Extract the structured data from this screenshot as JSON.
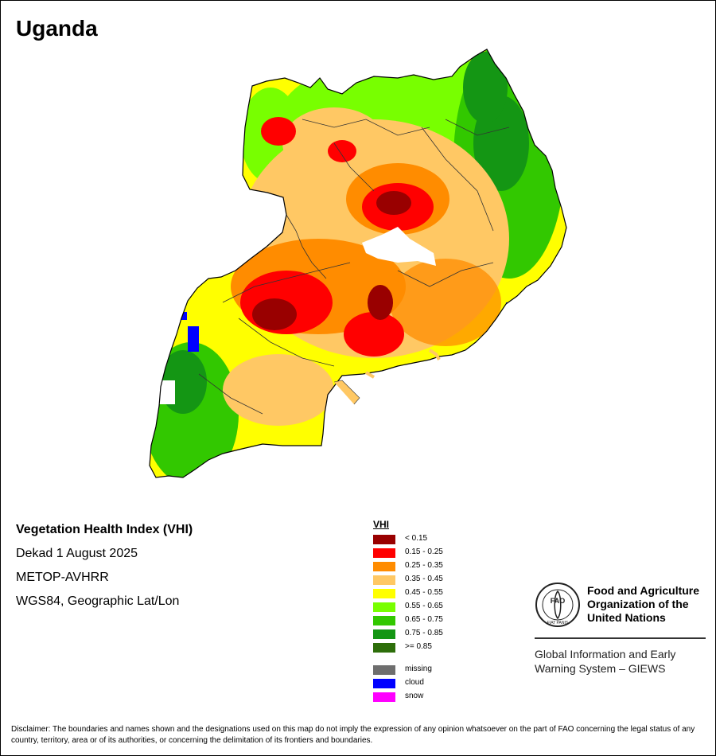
{
  "title": "Uganda",
  "meta": {
    "index_name": "Vegetation Health Index (VHI)",
    "period": "Dekad 1 August 2025",
    "sensor": "METOP-AVHRR",
    "projection": "WGS84, Geographic Lat/Lon"
  },
  "legend": {
    "title": "VHI",
    "classes": [
      {
        "label": "< 0.15",
        "color": "#990000"
      },
      {
        "label": "0.15 - 0.25",
        "color": "#ff0000"
      },
      {
        "label": "0.25 - 0.35",
        "color": "#ff8c00"
      },
      {
        "label": "0.35 - 0.45",
        "color": "#ffc864"
      },
      {
        "label": "0.45 - 0.55",
        "color": "#ffff00"
      },
      {
        "label": "0.55 - 0.65",
        "color": "#78ff00"
      },
      {
        "label": "0.65 - 0.75",
        "color": "#32c800"
      },
      {
        "label": "0.75 - 0.85",
        "color": "#149614"
      },
      {
        "label": ">= 0.85",
        "color": "#2d6e0a"
      }
    ],
    "special": [
      {
        "label": "missing",
        "color": "#6e6e6e"
      },
      {
        "label": "cloud",
        "color": "#0000ff"
      },
      {
        "label": "snow",
        "color": "#ff00ff"
      }
    ]
  },
  "organization": {
    "logo_text": "FAO",
    "logo_motto": "FIAT PANIS",
    "name_line1": "Food and Agriculture",
    "name_line2": "Organization of the",
    "name_line3": "United Nations",
    "system_line1": "Global Information and Early",
    "system_line2": "Warning System – GIEWS"
  },
  "disclaimer": "Disclaimer: The boundaries and names shown and the designations used on this map do not imply the expression of any opinion whatsoever on the part of FAO concerning the legal status of any country, territory, area or of its authorities, or concerning the delimitation of its frontiers and boundaries."
}
